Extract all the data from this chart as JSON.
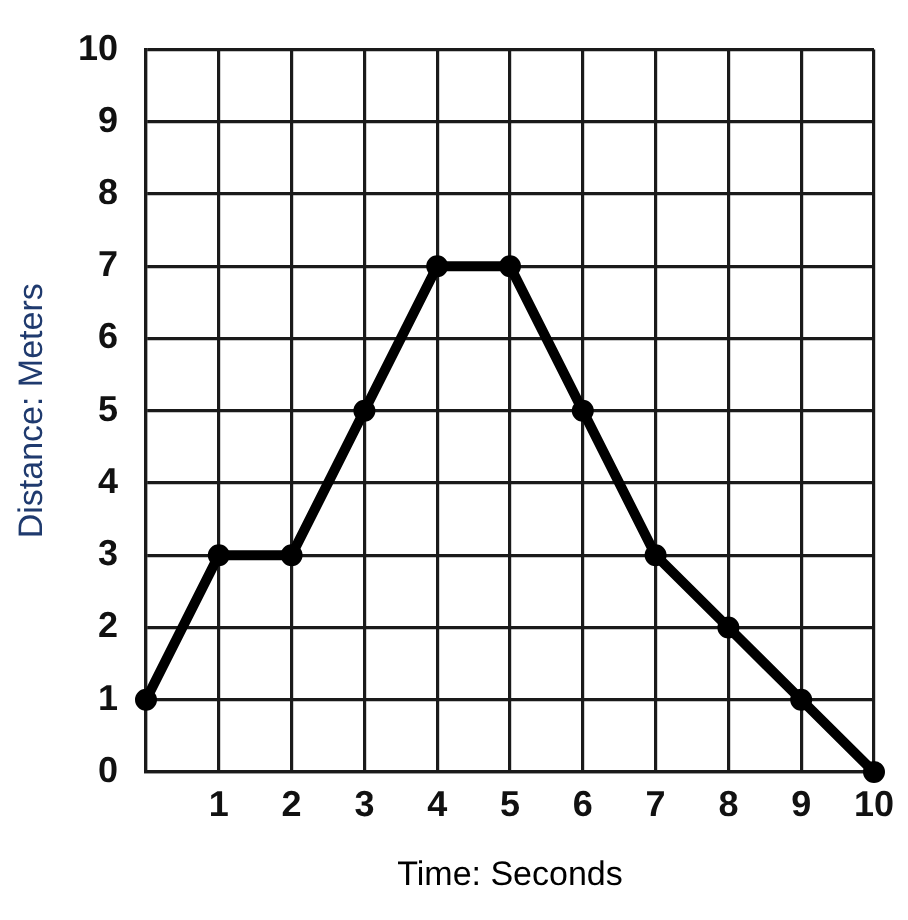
{
  "chart_data": {
    "type": "line",
    "xlabel": "Time: Seconds",
    "ylabel": "Distance: Meters",
    "x": [
      0,
      1,
      2,
      3,
      4,
      5,
      6,
      7,
      8,
      9,
      10
    ],
    "series": [
      {
        "color": "#000000",
        "values": [
          1,
          3,
          3,
          5,
          7,
          7,
          5,
          3,
          2,
          1,
          0
        ]
      }
    ],
    "xlim": [
      0,
      10
    ],
    "ylim": [
      0,
      10
    ],
    "xticks": [
      {
        "value": 0,
        "label": null
      },
      1,
      2,
      3,
      4,
      5,
      6,
      7,
      8,
      9,
      10
    ],
    "yticks": [
      0,
      1,
      2,
      3,
      4,
      5,
      6,
      7,
      8,
      9,
      10
    ],
    "grid": true,
    "marker": "circle",
    "line_style": "solid"
  }
}
